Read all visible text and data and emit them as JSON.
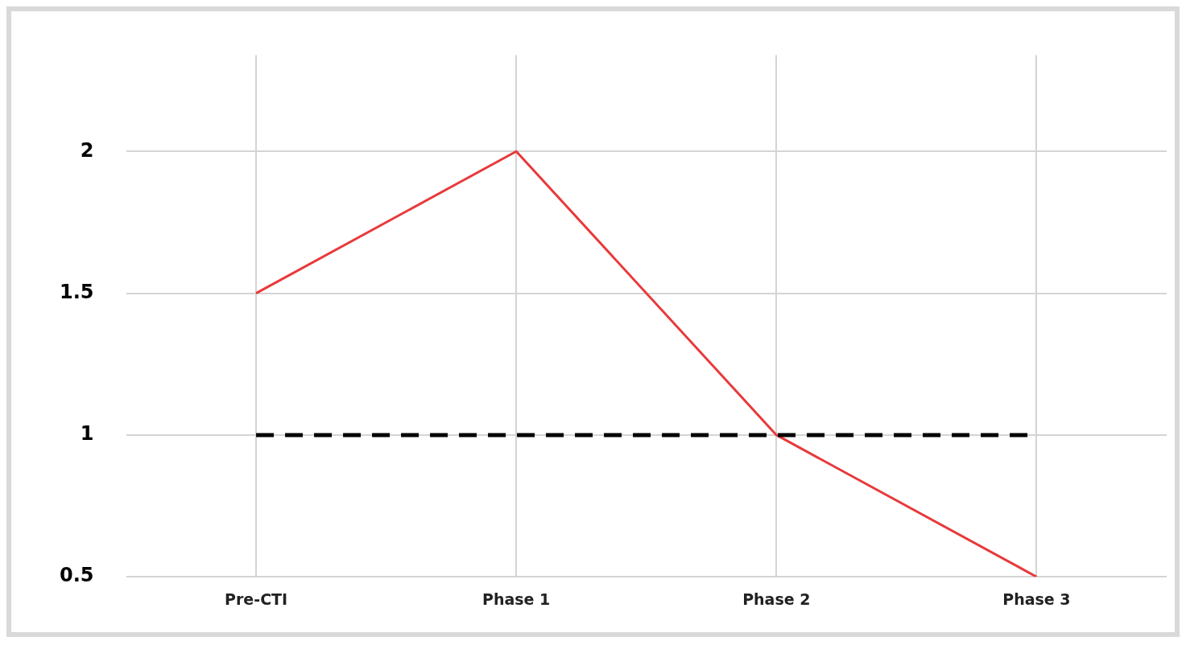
{
  "chart_data": {
    "type": "line",
    "categories": [
      "Pre-CTI",
      "Phase 1",
      "Phase 2",
      "Phase 3"
    ],
    "series": [
      {
        "color": "#e8393a",
        "values": [
          1.5,
          2,
          1,
          0.5
        ]
      }
    ],
    "ylim": [
      0.5,
      2.34
    ],
    "yticks": [
      0.5,
      1,
      1.5,
      2
    ],
    "grid": true,
    "legend": false,
    "marker": "none",
    "line_style": "solid",
    "ref_lines": [
      {
        "axis": "y",
        "value": 1,
        "color": "#000000",
        "line_style": "dashed"
      }
    ]
  }
}
